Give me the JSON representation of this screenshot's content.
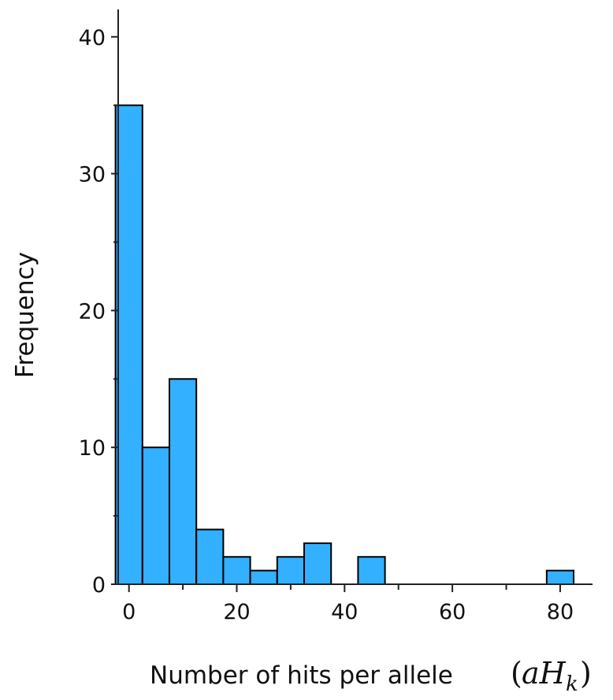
{
  "chart_data": {
    "type": "bar",
    "subtype": "histogram",
    "title": "",
    "xlabel": "Number of hits per allele",
    "xlabel_math": {
      "base": "aH",
      "subscript": "k"
    },
    "ylabel": "Frequency",
    "xlim": [
      -2,
      86
    ],
    "ylim": [
      0,
      42
    ],
    "x_ticks": [
      0,
      20,
      40,
      60,
      80
    ],
    "y_ticks": [
      0,
      10,
      20,
      30,
      40
    ],
    "bin_width": 5,
    "bins": [
      {
        "x0": -2.5,
        "x1": 2.5,
        "count": 35
      },
      {
        "x0": 2.5,
        "x1": 7.5,
        "count": 10
      },
      {
        "x0": 7.5,
        "x1": 12.5,
        "count": 15
      },
      {
        "x0": 12.5,
        "x1": 17.5,
        "count": 4
      },
      {
        "x0": 17.5,
        "x1": 22.5,
        "count": 2
      },
      {
        "x0": 22.5,
        "x1": 27.5,
        "count": 1
      },
      {
        "x0": 27.5,
        "x1": 32.5,
        "count": 2
      },
      {
        "x0": 32.5,
        "x1": 37.5,
        "count": 3
      },
      {
        "x0": 42.5,
        "x1": 47.5,
        "count": 2
      },
      {
        "x0": 77.5,
        "x1": 82.5,
        "count": 1
      }
    ],
    "bar_color": "#33b0ff",
    "edge_color": "#000000",
    "grid": false,
    "legend": "none"
  }
}
